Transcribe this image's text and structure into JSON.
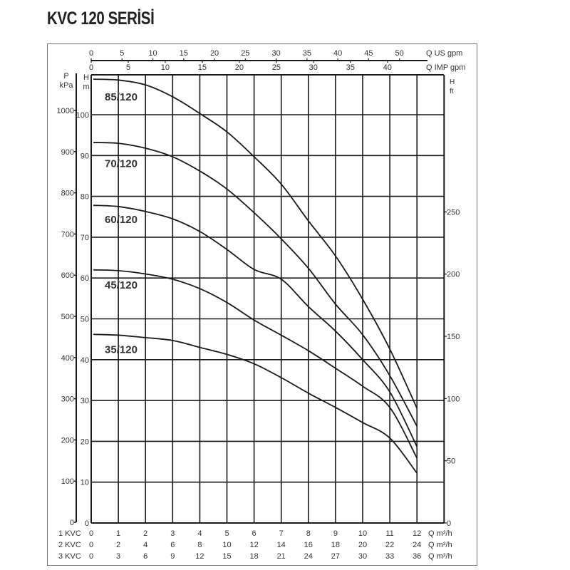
{
  "title": "KVC 120 SERİSİ",
  "axes": {
    "left_kpa_label": [
      "P",
      "kPa"
    ],
    "left_h_label": [
      "H",
      "m"
    ],
    "right_h_label": [
      "H",
      "ft"
    ],
    "kpa_ticks": [
      0,
      100,
      200,
      300,
      400,
      500,
      600,
      700,
      800,
      900,
      1000
    ],
    "h_m_ticks": [
      0,
      10,
      20,
      30,
      40,
      50,
      60,
      70,
      80,
      90,
      100
    ],
    "h_ft_ticks": [
      0,
      50,
      100,
      150,
      200,
      250
    ],
    "us_gpm_ticks": [
      0,
      5,
      10,
      15,
      20,
      25,
      30,
      35,
      40,
      45,
      50
    ],
    "us_gpm_label": "Q US gpm",
    "imp_gpm_ticks": [
      0,
      5,
      10,
      15,
      20,
      25,
      30,
      35,
      40
    ],
    "imp_gpm_label": "Q IMP gpm",
    "q_rows": [
      {
        "name": "1 KVC",
        "values": [
          0,
          1,
          2,
          3,
          4,
          5,
          6,
          7,
          8,
          9,
          10,
          11,
          12
        ],
        "unit": "Q m³/h"
      },
      {
        "name": "2 KVC",
        "values": [
          0,
          2,
          4,
          6,
          8,
          10,
          12,
          14,
          16,
          18,
          20,
          22,
          24
        ],
        "unit": "Q m³/h"
      },
      {
        "name": "3 KVC",
        "values": [
          0,
          3,
          6,
          9,
          12,
          15,
          18,
          21,
          24,
          27,
          30,
          33,
          36
        ],
        "unit": "Q m³/h"
      }
    ]
  },
  "chart_data": {
    "type": "line",
    "title": "KVC 120 SERİSİ",
    "xlabel": "Q m³/h (1 KVC)",
    "ylabel": "H m",
    "secondary_ylabels": [
      "P kPa",
      "H ft"
    ],
    "secondary_xlabels": [
      "Q US gpm",
      "Q IMP gpm"
    ],
    "x": [
      0,
      1,
      2,
      3,
      4,
      5,
      6,
      7,
      8,
      9,
      10,
      11,
      12
    ],
    "xlim": [
      0,
      13
    ],
    "ylim": [
      0,
      110
    ],
    "grid": true,
    "legend": "inline labels",
    "series": [
      {
        "name": "85/120",
        "values": [
          108.7,
          108.5,
          107.3,
          104.4,
          100.3,
          95.8,
          89.7,
          83.0,
          74.0,
          65.4,
          54.8,
          42.6,
          28.1
        ]
      },
      {
        "name": "70/120",
        "values": [
          93.2,
          93.0,
          91.8,
          89.7,
          86.2,
          81.8,
          76.0,
          69.6,
          62.4,
          53.6,
          46.1,
          36.1,
          23.7
        ]
      },
      {
        "name": "60/120",
        "values": [
          77.8,
          77.5,
          76.3,
          74.5,
          71.4,
          67.0,
          62.1,
          59.7,
          53.0,
          47.0,
          40.0,
          32.1,
          18.7
        ]
      },
      {
        "name": "45/120",
        "values": [
          62.0,
          61.8,
          61.0,
          59.7,
          57.4,
          54.0,
          49.7,
          46.0,
          42.2,
          37.9,
          33.5,
          28.3,
          15.9
        ]
      },
      {
        "name": "35/120",
        "values": [
          46.2,
          46.0,
          45.4,
          44.7,
          43.0,
          41.3,
          39.0,
          35.6,
          31.8,
          28.3,
          24.6,
          20.8,
          12.2
        ]
      }
    ],
    "label_positions": [
      {
        "name": "85/120",
        "q": 0.5,
        "h": 103.5
      },
      {
        "name": "70/120",
        "q": 0.5,
        "h": 87.2
      },
      {
        "name": "60/120",
        "q": 0.5,
        "h": 73.5
      },
      {
        "name": "45/120",
        "q": 0.5,
        "h": 57.4
      },
      {
        "name": "35/120",
        "q": 0.5,
        "h": 41.6
      }
    ]
  }
}
